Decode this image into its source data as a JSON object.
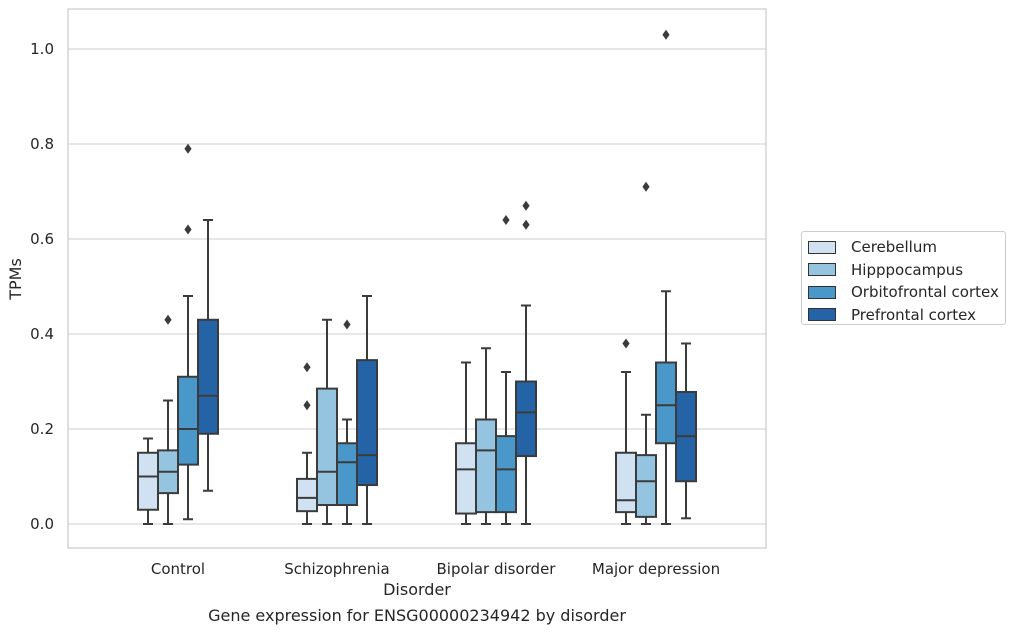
{
  "chart_data": {
    "type": "box",
    "caption": "Gene expression for ENSG00000234942 by disorder",
    "xlabel": "Disorder",
    "ylabel": "TPMs",
    "ylim": [
      -0.05,
      1.08
    ],
    "yticks": [
      "0.0",
      "0.2",
      "0.4",
      "0.6",
      "0.8",
      "1.0"
    ],
    "ytick_values": [
      0.0,
      0.2,
      0.4,
      0.6,
      0.8,
      1.0
    ],
    "grid": true,
    "legend_position": "right",
    "categories": [
      "Control",
      "Schizophrenia",
      "Bipolar disorder",
      "Major depression"
    ],
    "series": [
      {
        "name": "Cerebellum",
        "color": "#d0e1f2",
        "boxes": [
          {
            "whisker_low": 0.0,
            "q1": 0.03,
            "median": 0.1,
            "q3": 0.15,
            "whisker_high": 0.18,
            "outliers": []
          },
          {
            "whisker_low": 0.0,
            "q1": 0.027,
            "median": 0.055,
            "q3": 0.095,
            "whisker_high": 0.15,
            "outliers": [
              0.25,
              0.33
            ]
          },
          {
            "whisker_low": 0.0,
            "q1": 0.022,
            "median": 0.115,
            "q3": 0.17,
            "whisker_high": 0.34,
            "outliers": []
          },
          {
            "whisker_low": 0.0,
            "q1": 0.025,
            "median": 0.05,
            "q3": 0.15,
            "whisker_high": 0.32,
            "outliers": [
              0.38
            ]
          }
        ]
      },
      {
        "name": "Hipppocampus",
        "color": "#94c4df",
        "boxes": [
          {
            "whisker_low": 0.0,
            "q1": 0.065,
            "median": 0.11,
            "q3": 0.155,
            "whisker_high": 0.26,
            "outliers": [
              0.43
            ]
          },
          {
            "whisker_low": 0.0,
            "q1": 0.04,
            "median": 0.11,
            "q3": 0.285,
            "whisker_high": 0.43,
            "outliers": []
          },
          {
            "whisker_low": 0.0,
            "q1": 0.025,
            "median": 0.155,
            "q3": 0.22,
            "whisker_high": 0.37,
            "outliers": []
          },
          {
            "whisker_low": 0.0,
            "q1": 0.015,
            "median": 0.09,
            "q3": 0.145,
            "whisker_high": 0.23,
            "outliers": [
              0.71
            ]
          }
        ]
      },
      {
        "name": "Orbitofrontal cortex",
        "color": "#4a98c9",
        "boxes": [
          {
            "whisker_low": 0.01,
            "q1": 0.125,
            "median": 0.2,
            "q3": 0.31,
            "whisker_high": 0.48,
            "outliers": [
              0.62,
              0.79
            ]
          },
          {
            "whisker_low": 0.0,
            "q1": 0.04,
            "median": 0.13,
            "q3": 0.17,
            "whisker_high": 0.22,
            "outliers": [
              0.42
            ]
          },
          {
            "whisker_low": 0.0,
            "q1": 0.025,
            "median": 0.115,
            "q3": 0.185,
            "whisker_high": 0.32,
            "outliers": [
              0.64
            ]
          },
          {
            "whisker_low": 0.0,
            "q1": 0.17,
            "median": 0.25,
            "q3": 0.34,
            "whisker_high": 0.49,
            "outliers": [
              1.03
            ]
          }
        ]
      },
      {
        "name": "Prefrontal cortex",
        "color": "#2464a6",
        "boxes": [
          {
            "whisker_low": 0.07,
            "q1": 0.19,
            "median": 0.27,
            "q3": 0.43,
            "whisker_high": 0.64,
            "outliers": []
          },
          {
            "whisker_low": 0.0,
            "q1": 0.082,
            "median": 0.145,
            "q3": 0.345,
            "whisker_high": 0.48,
            "outliers": []
          },
          {
            "whisker_low": 0.0,
            "q1": 0.143,
            "median": 0.235,
            "q3": 0.3,
            "whisker_high": 0.46,
            "outliers": [
              0.67,
              0.63
            ]
          },
          {
            "whisker_low": 0.012,
            "q1": 0.09,
            "median": 0.185,
            "q3": 0.278,
            "whisker_high": 0.38,
            "outliers": []
          }
        ]
      }
    ]
  }
}
